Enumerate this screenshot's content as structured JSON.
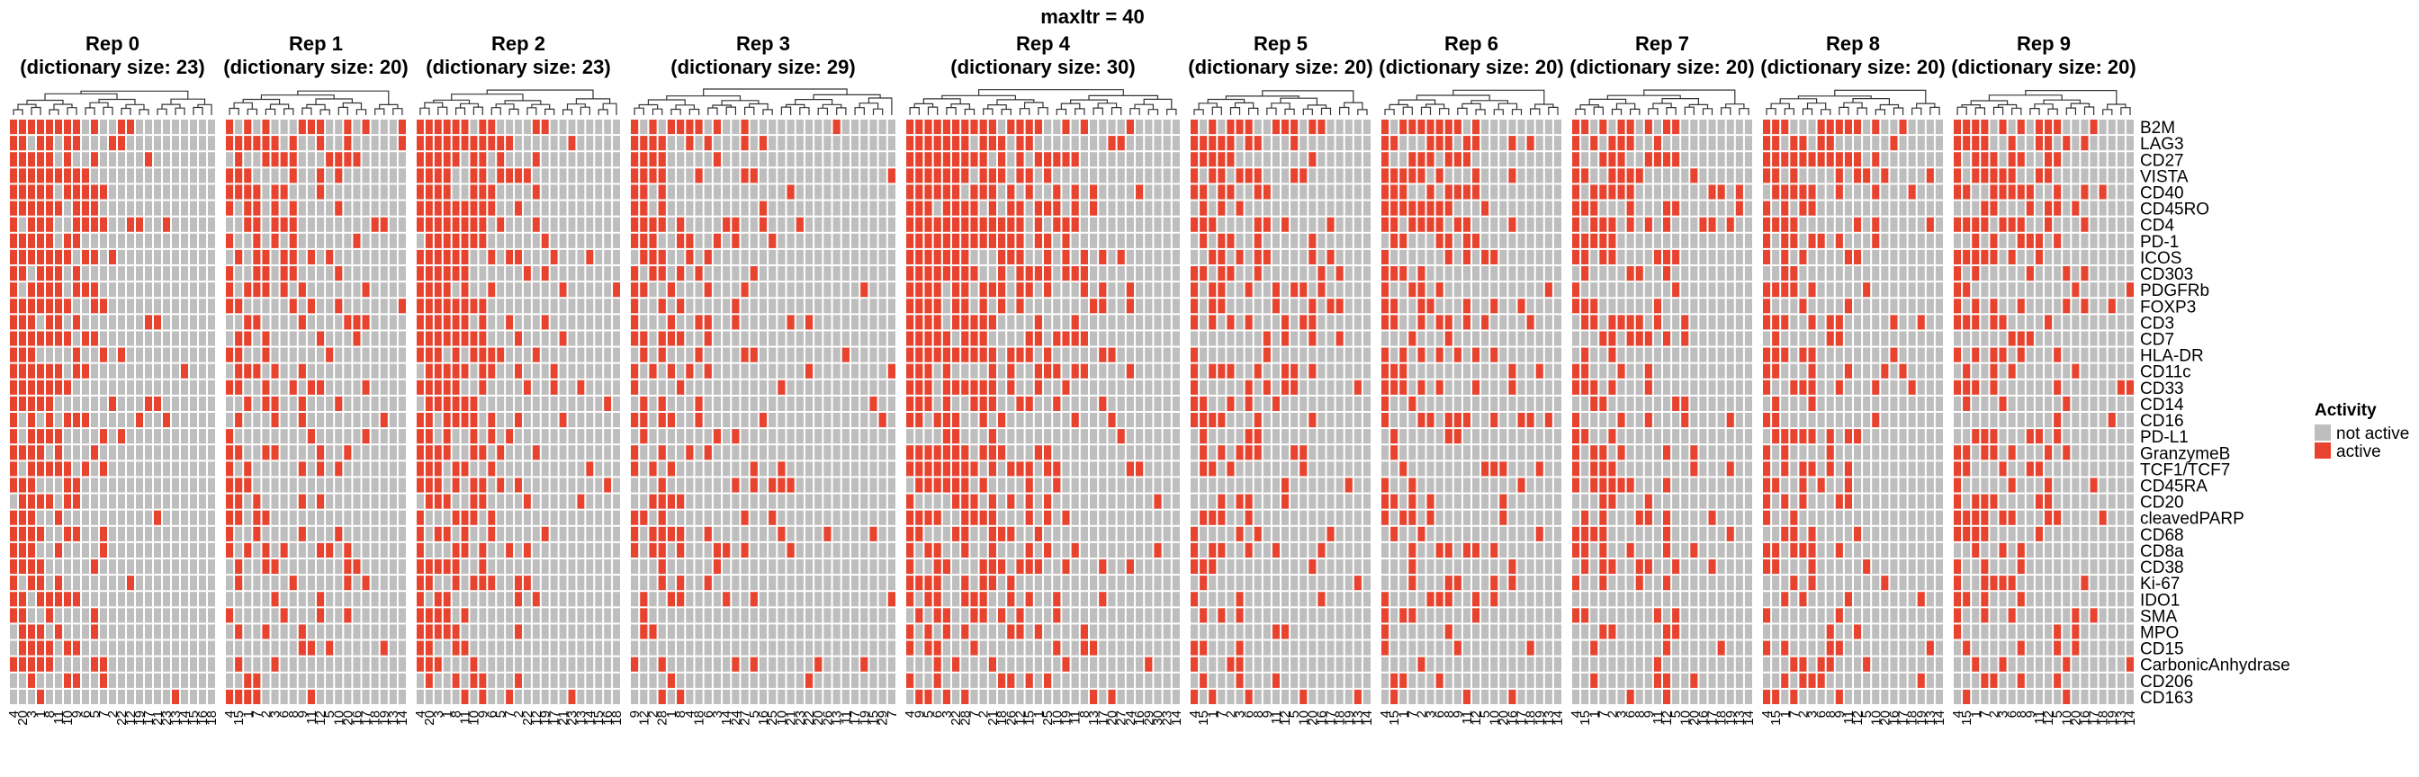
{
  "chart_data": {
    "type": "heatmap",
    "title": "maxItr = 40",
    "markers": [
      "B2M",
      "LAG3",
      "CD27",
      "VISTA",
      "CD40",
      "CD45RO",
      "CD4",
      "PD-1",
      "ICOS",
      "CD303",
      "PDGFRb",
      "FOXP3",
      "CD3",
      "CD7",
      "HLA-DR",
      "CD11c",
      "CD33",
      "CD14",
      "CD16",
      "PD-L1",
      "GranzymeB",
      "TCF1/TCF7",
      "CD45RA",
      "CD20",
      "cleavedPARP",
      "CD68",
      "CD8a",
      "CD38",
      "Ki-67",
      "IDO1",
      "SMA",
      "MPO",
      "CD15",
      "CarbonicAnhydrase",
      "CD206",
      "CD163"
    ],
    "legend": {
      "title": "Activity",
      "entries": [
        {
          "label": "not active",
          "color": "#BEBEBE"
        },
        {
          "label": "active",
          "color": "#E8432E"
        }
      ]
    },
    "colors": {
      "not_active": "#BEBEBE",
      "active": "#E8432E",
      "grid": "#FFFFFF"
    },
    "panels": [
      {
        "title": "Rep 0",
        "subtitle": "(dictionary size: 23)",
        "columns": [
          "4",
          "20",
          "3",
          "1",
          "8",
          "11",
          "10",
          "9",
          "6",
          "5",
          "7",
          "2",
          "22",
          "12",
          "19",
          "17",
          "21",
          "23",
          "13",
          "14",
          "15",
          "16",
          "18"
        ],
        "active_counts": [
          29,
          27,
          26,
          25,
          24,
          20,
          19,
          17,
          14,
          12,
          8,
          6,
          5,
          4,
          3,
          3,
          3,
          2,
          2,
          2,
          1,
          1,
          1
        ]
      },
      {
        "title": "Rep 1",
        "subtitle": "(dictionary size: 20)",
        "columns": [
          "4",
          "15",
          "1",
          "7",
          "2",
          "3",
          "6",
          "8",
          "9",
          "11",
          "12",
          "5",
          "10",
          "20",
          "16",
          "17",
          "18",
          "19",
          "13",
          "14"
        ],
        "active_counts": [
          24,
          18,
          16,
          15,
          13,
          12,
          12,
          11,
          10,
          10,
          9,
          8,
          7,
          5,
          4,
          4,
          3,
          3,
          2,
          1
        ]
      },
      {
        "title": "Rep 2",
        "subtitle": "(dictionary size: 23)",
        "columns": [
          "4",
          "20",
          "3",
          "1",
          "8",
          "11",
          "10",
          "9",
          "6",
          "5",
          "7",
          "2",
          "22",
          "12",
          "19",
          "17",
          "21",
          "23",
          "13",
          "14",
          "15",
          "16",
          "18"
        ],
        "active_counts": [
          29,
          27,
          26,
          25,
          24,
          20,
          19,
          17,
          14,
          12,
          8,
          6,
          5,
          4,
          3,
          3,
          3,
          2,
          2,
          2,
          1,
          1,
          1
        ]
      },
      {
        "title": "Rep 3",
        "subtitle": "(dictionary size: 29)",
        "columns": [
          "9",
          "12",
          "2",
          "28",
          "1",
          "8",
          "4",
          "18",
          "6",
          "3",
          "14",
          "24",
          "27",
          "5",
          "16",
          "25",
          "10",
          "21",
          "23",
          "22",
          "20",
          "26",
          "13",
          "11",
          "17",
          "19",
          "15",
          "29",
          "7"
        ],
        "active_counts": [
          22,
          16,
          14,
          13,
          12,
          10,
          9,
          8,
          7,
          6,
          5,
          5,
          4,
          4,
          3,
          3,
          3,
          2,
          2,
          2,
          2,
          2,
          1,
          1,
          1,
          1,
          1,
          1,
          1
        ]
      },
      {
        "title": "Rep 4",
        "subtitle": "(dictionary size: 30)",
        "columns": [
          "4",
          "9",
          "5",
          "6",
          "3",
          "22",
          "28",
          "7",
          "2",
          "21",
          "18",
          "26",
          "12",
          "15",
          "1",
          "25",
          "10",
          "19",
          "11",
          "8",
          "13",
          "17",
          "20",
          "27",
          "24",
          "16",
          "29",
          "30",
          "23",
          "14"
        ],
        "active_counts": [
          30,
          29,
          28,
          27,
          26,
          25,
          24,
          22,
          20,
          18,
          17,
          16,
          15,
          14,
          13,
          12,
          10,
          9,
          8,
          7,
          6,
          5,
          4,
          3,
          3,
          2,
          2,
          2,
          1,
          1
        ]
      },
      {
        "title": "Rep 5",
        "subtitle": "(dictionary size: 20)",
        "columns": [
          "4",
          "15",
          "1",
          "7",
          "2",
          "3",
          "6",
          "8",
          "9",
          "11",
          "12",
          "5",
          "10",
          "20",
          "16",
          "17",
          "18",
          "19",
          "13",
          "14"
        ],
        "active_counts": [
          24,
          18,
          16,
          15,
          13,
          12,
          12,
          11,
          10,
          10,
          9,
          8,
          7,
          5,
          4,
          4,
          3,
          3,
          2,
          1
        ]
      },
      {
        "title": "Rep 6",
        "subtitle": "(dictionary size: 20)",
        "columns": [
          "4",
          "15",
          "1",
          "7",
          "2",
          "3",
          "6",
          "8",
          "9",
          "11",
          "12",
          "5",
          "10",
          "20",
          "16",
          "17",
          "18",
          "19",
          "13",
          "14"
        ],
        "active_counts": [
          24,
          18,
          16,
          15,
          13,
          12,
          12,
          11,
          10,
          10,
          9,
          8,
          7,
          5,
          4,
          4,
          3,
          3,
          2,
          1
        ]
      },
      {
        "title": "Rep 7",
        "subtitle": "(dictionary size: 20)",
        "columns": [
          "4",
          "15",
          "1",
          "7",
          "2",
          "3",
          "6",
          "8",
          "9",
          "11",
          "12",
          "5",
          "10",
          "20",
          "16",
          "17",
          "18",
          "19",
          "13",
          "14"
        ],
        "active_counts": [
          24,
          18,
          16,
          15,
          13,
          12,
          12,
          11,
          10,
          10,
          9,
          8,
          7,
          5,
          4,
          4,
          3,
          3,
          2,
          1
        ]
      },
      {
        "title": "Rep 8",
        "subtitle": "(dictionary size: 20)",
        "columns": [
          "4",
          "15",
          "1",
          "7",
          "2",
          "3",
          "6",
          "8",
          "9",
          "11",
          "12",
          "5",
          "10",
          "20",
          "16",
          "17",
          "18",
          "19",
          "13",
          "14"
        ],
        "active_counts": [
          24,
          18,
          16,
          15,
          13,
          12,
          12,
          11,
          10,
          10,
          9,
          8,
          7,
          5,
          4,
          4,
          3,
          3,
          2,
          1
        ]
      },
      {
        "title": "Rep 9",
        "subtitle": "(dictionary size: 20)",
        "columns": [
          "4",
          "15",
          "1",
          "7",
          "2",
          "3",
          "6",
          "8",
          "9",
          "11",
          "12",
          "5",
          "10",
          "20",
          "16",
          "17",
          "18",
          "19",
          "13",
          "14"
        ],
        "active_counts": [
          24,
          18,
          16,
          15,
          13,
          12,
          12,
          11,
          10,
          10,
          9,
          8,
          7,
          5,
          4,
          4,
          3,
          3,
          2,
          1
        ]
      }
    ]
  }
}
